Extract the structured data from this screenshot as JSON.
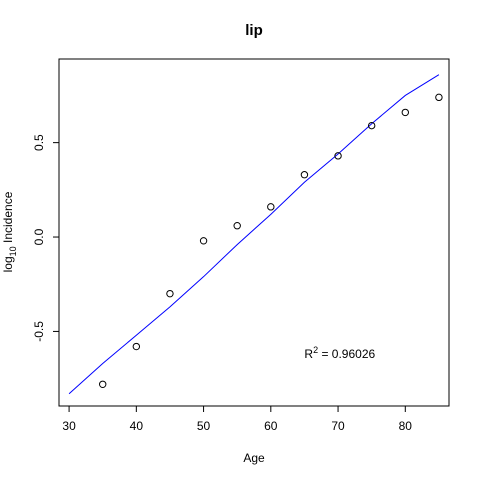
{
  "chart_data": {
    "type": "scatter",
    "title": "lip",
    "xlabel": "Age",
    "ylabel": {
      "main": "log",
      "sub": "10",
      "rest": " Incidence"
    },
    "xlim": [
      28.5,
      86.5
    ],
    "ylim": [
      -0.895,
      0.943
    ],
    "x_ticks": [
      30,
      40,
      50,
      60,
      70,
      80
    ],
    "y_ticks": [
      -0.5,
      0.0,
      0.5
    ],
    "x_tick_labels": [
      "30",
      "40",
      "50",
      "60",
      "70",
      "80"
    ],
    "y_tick_labels": [
      "-0.5",
      "0.0",
      "0.5"
    ],
    "series": [
      {
        "marker": "open-circle",
        "color": "#000000",
        "x": [
          35,
          40,
          45,
          50,
          55,
          60,
          65,
          70,
          75,
          80,
          85
        ],
        "y": [
          -0.78,
          -0.58,
          -0.3,
          -0.02,
          0.06,
          0.16,
          0.33,
          0.43,
          0.59,
          0.66,
          0.74
        ]
      },
      {
        "marker": "line",
        "color": "#0000ff",
        "x": [
          30,
          35,
          40,
          45,
          50,
          55,
          60,
          65,
          70,
          75,
          80,
          85
        ],
        "y": [
          -0.83,
          -0.67,
          -0.52,
          -0.37,
          -0.21,
          -0.04,
          0.12,
          0.29,
          0.44,
          0.6,
          0.75,
          0.86
        ]
      }
    ],
    "annotation": {
      "text_main": "R",
      "text_sup": "2",
      "text_rest": " = 0.96026",
      "x": 65,
      "y": -0.64
    },
    "grid": false,
    "legend": "none"
  }
}
